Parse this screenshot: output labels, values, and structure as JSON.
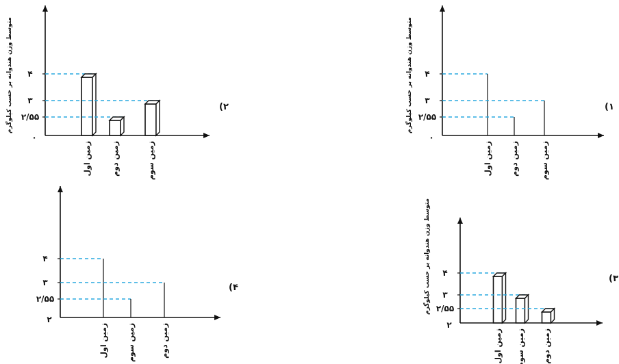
{
  "chart_data": [
    {
      "option_label": "(۱",
      "type": "line",
      "ylabel": "متوسط وزن هندوانه بر حسب کیلوگرم",
      "axis_origin": "۰",
      "y_ticks": [
        "۲/۵۵",
        "۳",
        "۴"
      ],
      "categories": [
        "زمین اول",
        "زمین دوم",
        "زمین سوم"
      ],
      "values": [
        4,
        2.55,
        3
      ],
      "guide_color": "#29a8df"
    },
    {
      "option_label": "(۲",
      "type": "bar",
      "ylabel": "متوسط وزن هندوانه بر حسب کیلوگرم",
      "axis_origin": "۰",
      "y_ticks": [
        "۲/۵۵",
        "۳",
        "۴"
      ],
      "categories": [
        "زمین اول",
        "زمین دوم",
        "زمین سوم"
      ],
      "values": [
        4,
        2.55,
        3
      ],
      "guide_color": "#29a8df"
    },
    {
      "option_label": "(۳",
      "type": "bar",
      "ylabel": "متوسط وزن هندوانه بر حسب کیلوگرم",
      "axis_origin": "۲",
      "y_ticks": [
        "۲/۵۵",
        "۳",
        "۴"
      ],
      "categories": [
        "زمین اول",
        "زمین سوم",
        "زمین دوم"
      ],
      "values": [
        4,
        3,
        2.55
      ],
      "guide_color": "#29a8df"
    },
    {
      "option_label": "(۴",
      "type": "line",
      "ylabel": "",
      "axis_origin": "۲",
      "y_ticks": [
        "۲/۵۵",
        "۳",
        "۴"
      ],
      "categories": [
        "زمین اول",
        "زمین سوم",
        "زمین دوم"
      ],
      "values": [
        4,
        2.55,
        3
      ],
      "guide_color": "#29a8df"
    }
  ]
}
